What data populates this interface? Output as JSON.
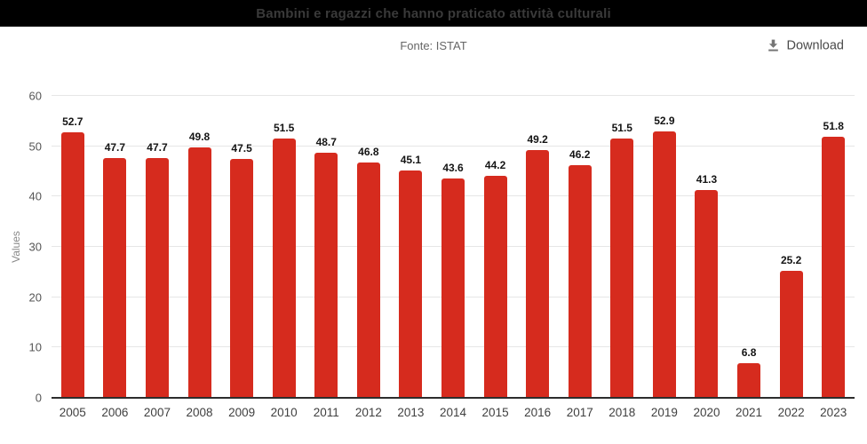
{
  "header": {
    "title": "Bambini e ragazzi che hanno praticato attività culturali"
  },
  "subheader": {
    "source": "Fonte: ISTAT",
    "download_label": "Download"
  },
  "colors": {
    "bar": "#d62b1e",
    "titlebar_bg": "#000000",
    "title_text": "#3a3a3a",
    "gridline": "#e6e6e6",
    "axis_line": "#2d2d2d",
    "download_icon": "#757575"
  },
  "chart_data": {
    "type": "bar",
    "title": "Bambini e ragazzi che hanno praticato attività culturali",
    "subtitle": "Fonte: ISTAT",
    "categories": [
      "2005",
      "2006",
      "2007",
      "2008",
      "2009",
      "2010",
      "2011",
      "2012",
      "2013",
      "2014",
      "2015",
      "2016",
      "2017",
      "2018",
      "2019",
      "2020",
      "2021",
      "2022",
      "2023"
    ],
    "values": [
      52.7,
      47.7,
      47.7,
      49.8,
      47.5,
      51.5,
      48.7,
      46.8,
      45.1,
      43.6,
      44.2,
      49.2,
      46.2,
      51.5,
      52.9,
      41.3,
      6.8,
      25.2,
      51.8
    ],
    "xlabel": "",
    "ylabel": "Values",
    "ylim": [
      0,
      60
    ],
    "yticks": [
      0,
      10,
      20,
      30,
      40,
      50,
      60
    ],
    "grid": true,
    "legend": false,
    "value_labels": true,
    "bar_color": "#d62b1e"
  }
}
